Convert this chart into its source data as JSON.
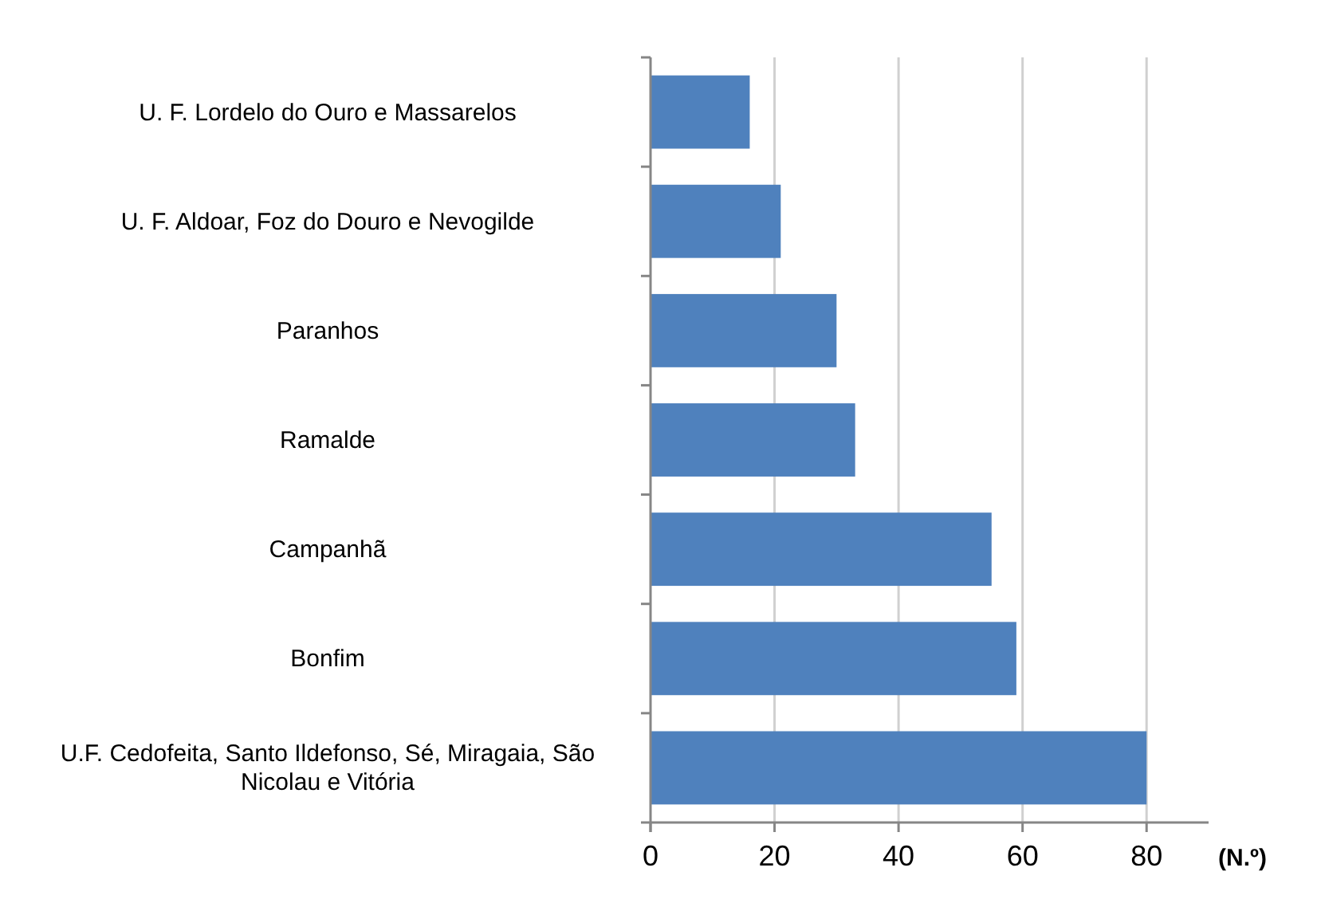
{
  "chart_data": {
    "type": "bar",
    "orientation": "horizontal",
    "categories": [
      "U. F. Lordelo do Ouro e Massarelos",
      "U. F. Aldoar, Foz do Douro e Nevogilde",
      "Paranhos",
      "Ramalde",
      "Campanhã",
      "Bonfim",
      "U.F. Cedofeita, Santo Ildefonso, Sé, Miragaia, São Nicolau e Vitória"
    ],
    "values": [
      16,
      21,
      30,
      33,
      55,
      59,
      80
    ],
    "color": "#4f81bd",
    "xlim": [
      0,
      90
    ],
    "xticks": [
      0,
      20,
      40,
      60,
      80
    ],
    "xlabel": "(N.º)",
    "grid": "x"
  }
}
